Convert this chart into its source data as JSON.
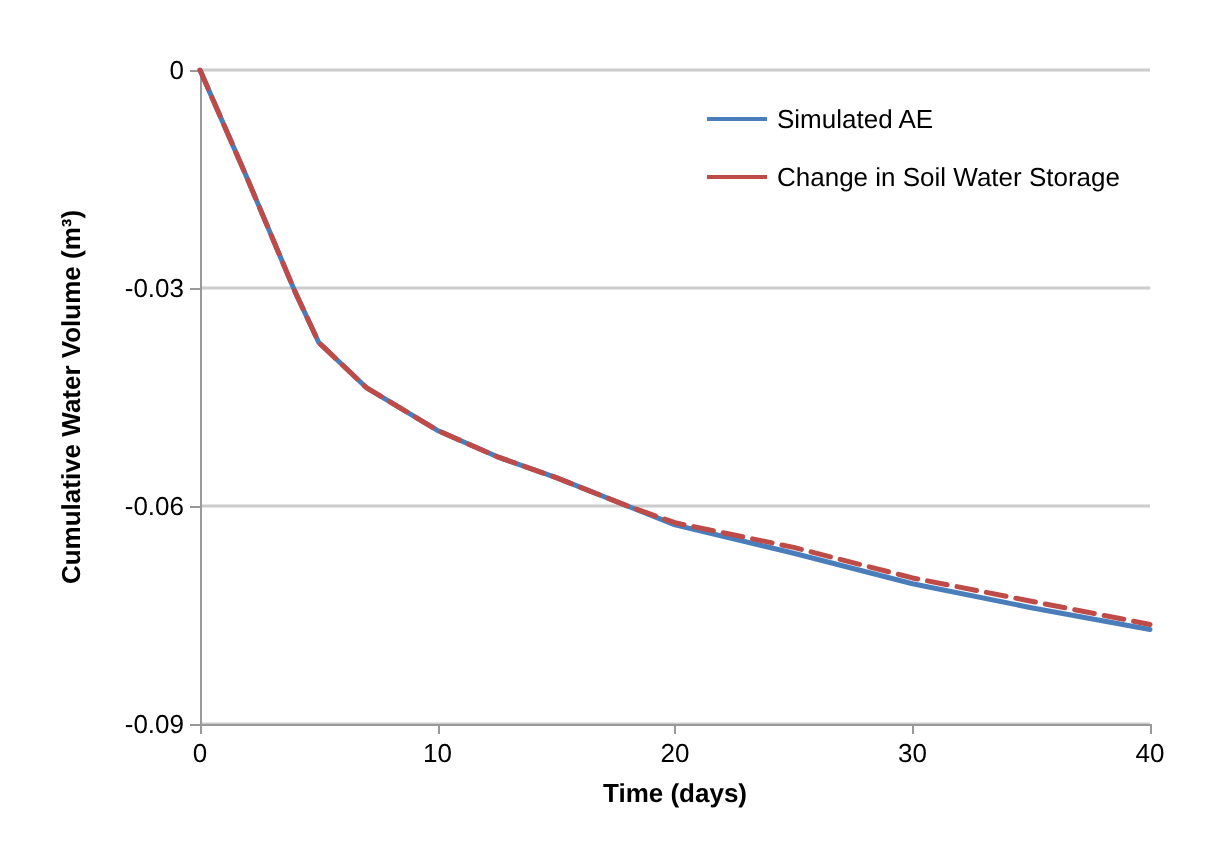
{
  "chart_data": {
    "type": "line",
    "xlabel": "Time (days)",
    "ylabel": "Cumulative Water Volume (m³)",
    "x": [
      0,
      2,
      4,
      5,
      7,
      10,
      12.5,
      15,
      18,
      20,
      25,
      30,
      35,
      40
    ],
    "series": [
      {
        "name": "Simulated AE",
        "color": "#4a7ebb",
        "line_style": "solid",
        "values": [
          0,
          -0.015,
          -0.0305,
          -0.0375,
          -0.0437,
          -0.0496,
          -0.0532,
          -0.0561,
          -0.06,
          -0.0626,
          -0.0665,
          -0.0707,
          -0.074,
          -0.077
        ]
      },
      {
        "name": "Change in Soil Water Storage",
        "color": "#be4b48",
        "line_style": "dashed",
        "values": [
          0,
          -0.015,
          -0.0305,
          -0.0375,
          -0.0437,
          -0.0496,
          -0.0532,
          -0.0561,
          -0.06,
          -0.0623,
          -0.0657,
          -0.0699,
          -0.0731,
          -0.0763
        ]
      }
    ],
    "xlim": [
      0,
      40
    ],
    "xticks": [
      0,
      10,
      20,
      30,
      40
    ],
    "ylim": [
      -0.09,
      0
    ],
    "yticks": [
      -0.09,
      -0.06,
      -0.03,
      0
    ],
    "grid": "y",
    "legend": "top right",
    "marker": "none"
  }
}
